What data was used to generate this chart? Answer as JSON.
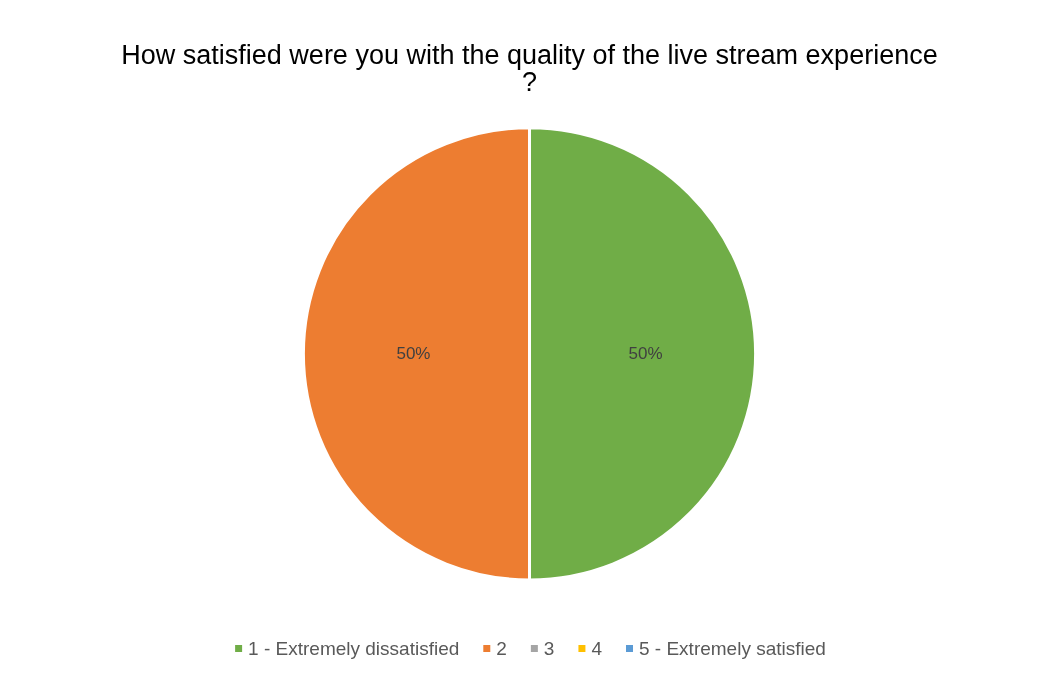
{
  "chart_data": {
    "type": "pie",
    "title": "How satisfied were you with the quality of the live stream experience?",
    "categories": [
      "1 - Extremely dissatisfied",
      "2",
      "3",
      "4",
      "5 - Extremely satisfied"
    ],
    "values": [
      50,
      50,
      0,
      0,
      0
    ],
    "colors": [
      "#70ad47",
      "#ed7d31",
      "#a5a5a5",
      "#ffc000",
      "#5b9bd5"
    ],
    "value_labels": [
      "50%",
      "50%",
      null,
      null,
      null
    ],
    "legend": "bottom"
  }
}
